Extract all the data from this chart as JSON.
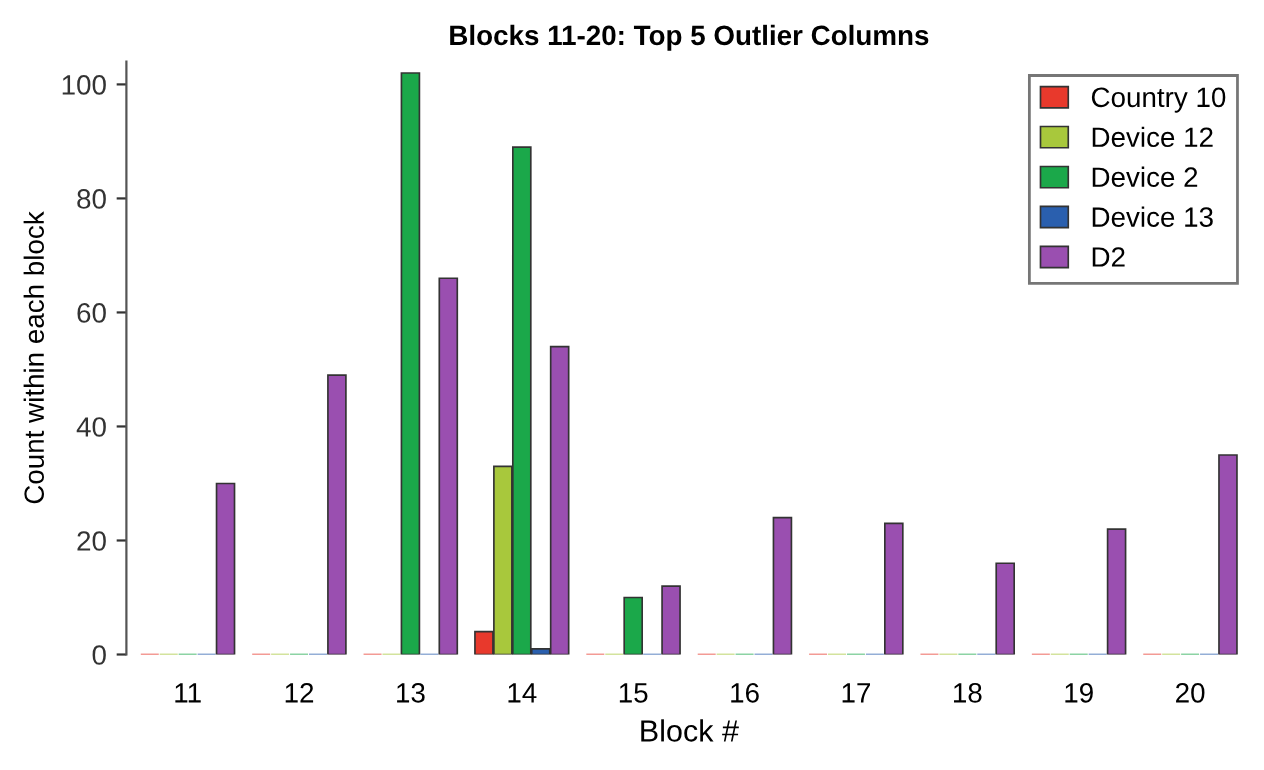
{
  "chart_data": {
    "type": "bar",
    "title": "Blocks 11-20: Top 5 Outlier Columns",
    "xlabel": "Block #",
    "ylabel": "Count within each block",
    "categories": [
      "11",
      "12",
      "13",
      "14",
      "15",
      "16",
      "17",
      "18",
      "19",
      "20"
    ],
    "series": [
      {
        "name": "Country 10",
        "color": "#e8392c",
        "values": [
          0,
          0,
          0,
          4,
          0,
          0,
          0,
          0,
          0,
          0
        ]
      },
      {
        "name": "Device 12",
        "color": "#a8c83c",
        "values": [
          0,
          0,
          0,
          33,
          0,
          0,
          0,
          0,
          0,
          0
        ]
      },
      {
        "name": "Device 2",
        "color": "#1ba84a",
        "values": [
          0,
          0,
          102,
          89,
          10,
          0,
          0,
          0,
          0,
          0
        ]
      },
      {
        "name": "Device 13",
        "color": "#2a5fae",
        "values": [
          0,
          0,
          0,
          1,
          0,
          0,
          0,
          0,
          0,
          0
        ]
      },
      {
        "name": "D2",
        "color": "#9a4fb0",
        "values": [
          30,
          49,
          66,
          54,
          12,
          24,
          23,
          16,
          22,
          35
        ]
      }
    ],
    "ylim": [
      0,
      104
    ],
    "yticks": [
      0,
      20,
      40,
      60,
      80,
      100
    ],
    "grid": false,
    "legend": "top right"
  }
}
